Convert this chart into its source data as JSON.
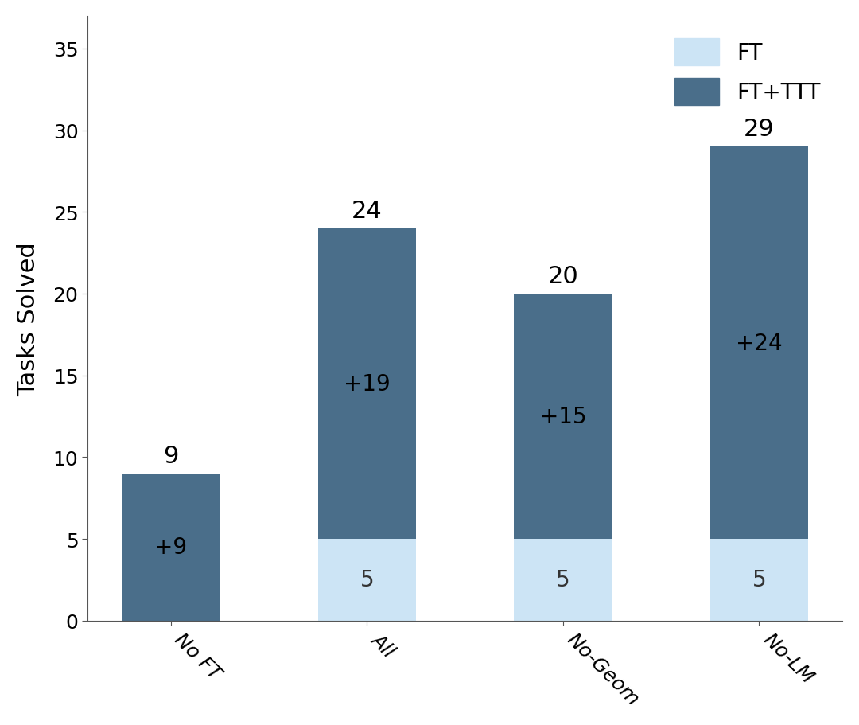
{
  "categories": [
    "No FT",
    "All",
    "No-Geom",
    "No-LM"
  ],
  "ft_values": [
    0,
    5,
    5,
    5
  ],
  "ttt_values": [
    9,
    19,
    15,
    24
  ],
  "totals": [
    9,
    24,
    20,
    29
  ],
  "ttt_labels": [
    "+9",
    "+19",
    "+15",
    "+24"
  ],
  "ft_labels": [
    "",
    "5",
    "5",
    "5"
  ],
  "color_ft": "#cce4f5",
  "color_ttt": "#4a6e8a",
  "ylabel": "Tasks Solved",
  "ylim": [
    0,
    37
  ],
  "yticks": [
    0,
    5,
    10,
    15,
    20,
    25,
    30,
    35
  ],
  "legend_ft": "FT",
  "legend_ttt": "FT+TTT",
  "bar_width": 0.5,
  "figsize": [
    10.8,
    9.12
  ],
  "dpi": 100,
  "label_fontsize": 22,
  "tick_fontsize": 18,
  "annotation_fontsize": 20,
  "total_label_fontsize": 22
}
